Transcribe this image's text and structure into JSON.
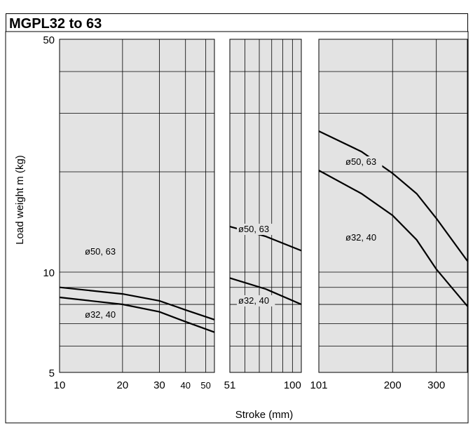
{
  "title": "MGPL32 to 63",
  "chart_data": {
    "type": "line",
    "title": "MGPL32 to 63",
    "xlabel": "Stroke (mm)",
    "ylabel": "Load weight  m (kg)",
    "y_scale": "log",
    "ylim": [
      5,
      50
    ],
    "y_ticks": [
      "50",
      "10",
      "5"
    ],
    "panels": [
      {
        "xlim": [
          10,
          55
        ],
        "x_scale": "log",
        "x_ticks": [
          "10",
          "20",
          "30",
          "40",
          "50"
        ],
        "series": [
          {
            "label": "ø50, 63",
            "x": [
              10,
              20,
              30,
              40,
              55
            ],
            "y": [
              9.0,
              8.6,
              8.2,
              7.7,
              7.2
            ]
          },
          {
            "label": "ø32, 40",
            "x": [
              10,
              20,
              30,
              40,
              55
            ],
            "y": [
              8.4,
              8.0,
              7.6,
              7.1,
              6.6
            ]
          }
        ]
      },
      {
        "xlim": [
          51,
          110
        ],
        "x_scale": "log",
        "x_ticks": [
          "51",
          "100"
        ],
        "series": [
          {
            "label": "ø50, 63",
            "x": [
              51,
              75,
              110
            ],
            "y": [
              13.7,
              12.8,
              11.6
            ]
          },
          {
            "label": "ø32, 40",
            "x": [
              51,
              75,
              110
            ],
            "y": [
              9.6,
              8.9,
              8.0
            ]
          }
        ]
      },
      {
        "xlim": [
          101,
          400
        ],
        "x_scale": "log",
        "x_ticks": [
          "101",
          "200",
          "300"
        ],
        "series": [
          {
            "label": "ø50, 63",
            "x": [
              101,
              150,
              200,
              250,
              300,
              400
            ],
            "y": [
              26.5,
              23.0,
              19.8,
              17.2,
              14.5,
              10.8
            ]
          },
          {
            "label": "ø32, 40",
            "x": [
              101,
              150,
              200,
              250,
              300,
              400
            ],
            "y": [
              20.2,
              17.2,
              14.8,
              12.5,
              10.2,
              7.9
            ]
          }
        ]
      }
    ]
  }
}
